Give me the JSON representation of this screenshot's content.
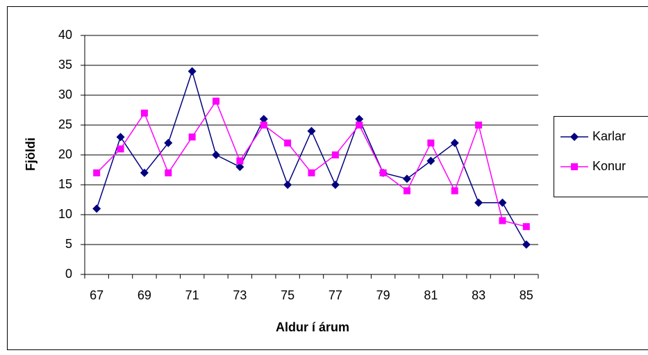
{
  "chart_data": {
    "type": "line",
    "xlabel": "Aldur í árum",
    "ylabel": "Fjöldi",
    "categories": [
      67,
      null,
      69,
      null,
      71,
      null,
      73,
      null,
      75,
      null,
      77,
      null,
      79,
      null,
      81,
      null,
      83,
      null,
      85
    ],
    "series": [
      {
        "name": "Karlar",
        "color": "#000080",
        "marker": "diamond",
        "values": [
          11,
          23,
          17,
          22,
          34,
          20,
          18,
          26,
          15,
          24,
          15,
          26,
          17,
          16,
          19,
          22,
          12,
          12,
          5
        ]
      },
      {
        "name": "Konur",
        "color": "#ff00ff",
        "marker": "square",
        "values": [
          17,
          21,
          27,
          17,
          23,
          29,
          19,
          25,
          22,
          17,
          20,
          25,
          17,
          14,
          22,
          14,
          25,
          9,
          8
        ]
      }
    ],
    "ylim": [
      0,
      40
    ],
    "yticks": [
      0,
      5,
      10,
      15,
      20,
      25,
      30,
      35,
      40
    ],
    "grid": true,
    "legend": "right"
  }
}
